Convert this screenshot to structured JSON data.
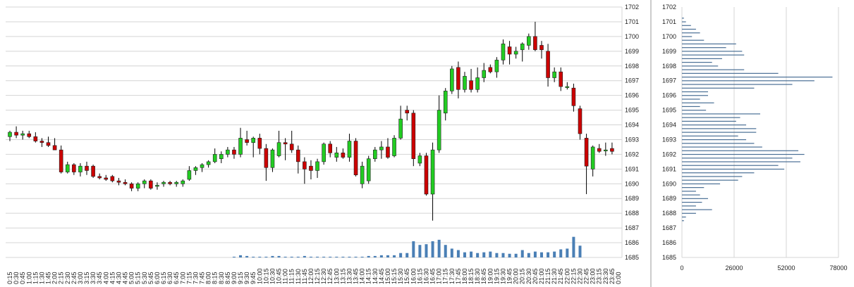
{
  "colors": {
    "background": "#ffffff",
    "grid": "#d4d4d4",
    "up": "#22cc22",
    "down": "#cc0000",
    "wick": "#000000",
    "volume": "#4a7fb5",
    "profile": "#4a6f95",
    "separator": "#999999"
  },
  "chart_data": [
    {
      "type": "candlestick",
      "grid": true,
      "ylim": [
        1685,
        1702
      ],
      "y_ticks": [
        "1702",
        "1701",
        "1700",
        "1699",
        "1698",
        "1697",
        "1696",
        "1695",
        "1694",
        "1693",
        "1692",
        "1691",
        "1690",
        "1689",
        "1688",
        "1687",
        "1686",
        "1685"
      ],
      "x_ticks": [
        "0:15",
        "0:30",
        "0:45",
        "1:00",
        "1:15",
        "1:30",
        "1:45",
        "2:00",
        "2:15",
        "2:30",
        "2:45",
        "3:00",
        "3:15",
        "3:30",
        "3:45",
        "4:00",
        "4:15",
        "4:30",
        "4:45",
        "5:00",
        "5:15",
        "5:30",
        "5:45",
        "6:00",
        "6:15",
        "6:30",
        "6:45",
        "7:00",
        "7:15",
        "7:30",
        "7:45",
        "8:00",
        "8:15",
        "8:30",
        "8:45",
        "9:00",
        "9:15",
        "9:30",
        "9:45",
        "10:00",
        "10:15",
        "10:30",
        "10:45",
        "11:00",
        "11:15",
        "11:30",
        "11:45",
        "12:00",
        "12:15",
        "12:30",
        "12:45",
        "13:00",
        "13:15",
        "13:30",
        "13:45",
        "14:00",
        "14:15",
        "14:30",
        "14:45",
        "15:00",
        "15:15",
        "15:30",
        "15:45",
        "16:00",
        "16:15",
        "16:30",
        "16:45",
        "17:00",
        "17:15",
        "17:30",
        "17:45",
        "18:00",
        "18:15",
        "18:30",
        "18:45",
        "19:00",
        "19:15",
        "19:30",
        "19:45",
        "20:00",
        "20:15",
        "20:30",
        "20:45",
        "21:00",
        "21:15",
        "21:30",
        "21:45",
        "22:00",
        "22:15",
        "22:30",
        "22:45",
        "23:00",
        "23:15",
        "23:30",
        "23:45",
        "0:00"
      ],
      "candles": [
        {
          "o": 1693.2,
          "h": 1693.6,
          "l": 1692.9,
          "c": 1693.5
        },
        {
          "o": 1693.5,
          "h": 1693.9,
          "l": 1693.1,
          "c": 1693.3
        },
        {
          "o": 1693.3,
          "h": 1693.6,
          "l": 1693.0,
          "c": 1693.4
        },
        {
          "o": 1693.4,
          "h": 1693.6,
          "l": 1693.1,
          "c": 1693.2
        },
        {
          "o": 1693.2,
          "h": 1693.5,
          "l": 1692.8,
          "c": 1692.9
        },
        {
          "o": 1692.9,
          "h": 1693.1,
          "l": 1692.5,
          "c": 1692.8
        },
        {
          "o": 1692.8,
          "h": 1693.2,
          "l": 1692.5,
          "c": 1692.6
        },
        {
          "o": 1692.6,
          "h": 1693.1,
          "l": 1692.3,
          "c": 1692.3
        },
        {
          "o": 1692.3,
          "h": 1692.6,
          "l": 1690.7,
          "c": 1690.8
        },
        {
          "o": 1690.8,
          "h": 1691.5,
          "l": 1690.7,
          "c": 1691.3
        },
        {
          "o": 1691.3,
          "h": 1691.4,
          "l": 1690.6,
          "c": 1690.8
        },
        {
          "o": 1690.8,
          "h": 1691.4,
          "l": 1690.5,
          "c": 1691.2
        },
        {
          "o": 1691.2,
          "h": 1691.5,
          "l": 1690.6,
          "c": 1690.9
        },
        {
          "o": 1691.2,
          "h": 1691.3,
          "l": 1690.4,
          "c": 1690.5
        },
        {
          "o": 1690.5,
          "h": 1690.7,
          "l": 1690.3,
          "c": 1690.4
        },
        {
          "o": 1690.4,
          "h": 1690.6,
          "l": 1690.2,
          "c": 1690.3
        },
        {
          "o": 1690.5,
          "h": 1690.6,
          "l": 1690.1,
          "c": 1690.2
        },
        {
          "o": 1690.2,
          "h": 1690.4,
          "l": 1689.9,
          "c": 1690.1
        },
        {
          "o": 1690.1,
          "h": 1690.3,
          "l": 1689.9,
          "c": 1690.0
        },
        {
          "o": 1690.0,
          "h": 1690.1,
          "l": 1689.5,
          "c": 1689.7
        },
        {
          "o": 1689.7,
          "h": 1690.1,
          "l": 1689.5,
          "c": 1690.0
        },
        {
          "o": 1690.0,
          "h": 1690.3,
          "l": 1689.7,
          "c": 1690.2
        },
        {
          "o": 1690.2,
          "h": 1690.3,
          "l": 1689.6,
          "c": 1689.7
        },
        {
          "o": 1689.9,
          "h": 1690.1,
          "l": 1689.6,
          "c": 1689.9
        },
        {
          "o": 1690.0,
          "h": 1690.2,
          "l": 1689.8,
          "c": 1690.1
        },
        {
          "o": 1690.1,
          "h": 1690.2,
          "l": 1689.9,
          "c": 1690.0
        },
        {
          "o": 1690.0,
          "h": 1690.2,
          "l": 1689.8,
          "c": 1690.1
        },
        {
          "o": 1690.0,
          "h": 1690.3,
          "l": 1689.8,
          "c": 1690.2
        },
        {
          "o": 1690.3,
          "h": 1691.2,
          "l": 1690.2,
          "c": 1690.9
        },
        {
          "o": 1690.9,
          "h": 1691.2,
          "l": 1690.6,
          "c": 1691.1
        },
        {
          "o": 1691.1,
          "h": 1691.4,
          "l": 1690.8,
          "c": 1691.3
        },
        {
          "o": 1691.3,
          "h": 1691.6,
          "l": 1691.1,
          "c": 1691.5
        },
        {
          "o": 1691.5,
          "h": 1692.4,
          "l": 1691.4,
          "c": 1692.0
        },
        {
          "o": 1691.7,
          "h": 1692.2,
          "l": 1691.4,
          "c": 1692.0
        },
        {
          "o": 1692.0,
          "h": 1692.5,
          "l": 1691.8,
          "c": 1692.3
        },
        {
          "o": 1692.3,
          "h": 1692.5,
          "l": 1691.7,
          "c": 1692.0
        },
        {
          "o": 1692.0,
          "h": 1693.8,
          "l": 1691.8,
          "c": 1693.1
        },
        {
          "o": 1693.0,
          "h": 1693.6,
          "l": 1692.6,
          "c": 1692.8
        },
        {
          "o": 1692.8,
          "h": 1693.2,
          "l": 1691.8,
          "c": 1693.1
        },
        {
          "o": 1693.1,
          "h": 1693.4,
          "l": 1692.0,
          "c": 1692.4
        },
        {
          "o": 1692.4,
          "h": 1692.7,
          "l": 1690.2,
          "c": 1691.1
        },
        {
          "o": 1691.1,
          "h": 1692.4,
          "l": 1690.8,
          "c": 1692.3
        },
        {
          "o": 1691.9,
          "h": 1693.6,
          "l": 1691.8,
          "c": 1692.8
        },
        {
          "o": 1692.8,
          "h": 1693.1,
          "l": 1691.6,
          "c": 1692.7
        },
        {
          "o": 1692.7,
          "h": 1693.6,
          "l": 1692.1,
          "c": 1692.3
        },
        {
          "o": 1692.3,
          "h": 1692.6,
          "l": 1690.7,
          "c": 1691.5
        },
        {
          "o": 1691.5,
          "h": 1691.8,
          "l": 1690.0,
          "c": 1691.0
        },
        {
          "o": 1691.2,
          "h": 1691.6,
          "l": 1690.3,
          "c": 1690.9
        },
        {
          "o": 1690.9,
          "h": 1691.7,
          "l": 1690.4,
          "c": 1691.5
        },
        {
          "o": 1691.5,
          "h": 1692.8,
          "l": 1691.3,
          "c": 1692.7
        },
        {
          "o": 1692.7,
          "h": 1692.9,
          "l": 1691.8,
          "c": 1692.1
        },
        {
          "o": 1691.8,
          "h": 1692.5,
          "l": 1691.5,
          "c": 1692.1
        },
        {
          "o": 1692.1,
          "h": 1692.4,
          "l": 1691.7,
          "c": 1691.8
        },
        {
          "o": 1691.8,
          "h": 1693.4,
          "l": 1691.5,
          "c": 1692.9
        },
        {
          "o": 1692.9,
          "h": 1693.1,
          "l": 1690.5,
          "c": 1690.6
        },
        {
          "o": 1690.0,
          "h": 1691.5,
          "l": 1689.7,
          "c": 1691.2
        },
        {
          "o": 1690.2,
          "h": 1691.9,
          "l": 1690.0,
          "c": 1691.7
        },
        {
          "o": 1691.7,
          "h": 1692.5,
          "l": 1691.5,
          "c": 1692.3
        },
        {
          "o": 1692.3,
          "h": 1692.9,
          "l": 1691.7,
          "c": 1692.5
        },
        {
          "o": 1692.5,
          "h": 1693.1,
          "l": 1691.7,
          "c": 1691.8
        },
        {
          "o": 1691.9,
          "h": 1693.3,
          "l": 1691.8,
          "c": 1693.1
        },
        {
          "o": 1693.1,
          "h": 1695.3,
          "l": 1693.0,
          "c": 1694.4
        },
        {
          "o": 1695.0,
          "h": 1695.3,
          "l": 1694.3,
          "c": 1694.8
        },
        {
          "o": 1694.8,
          "h": 1695.0,
          "l": 1691.2,
          "c": 1691.7
        },
        {
          "o": 1691.4,
          "h": 1692.1,
          "l": 1691.2,
          "c": 1691.9
        },
        {
          "o": 1691.9,
          "h": 1692.1,
          "l": 1689.2,
          "c": 1689.3
        },
        {
          "o": 1689.3,
          "h": 1692.8,
          "l": 1687.5,
          "c": 1692.3
        },
        {
          "o": 1692.3,
          "h": 1696.0,
          "l": 1692.1,
          "c": 1695.0
        },
        {
          "o": 1694.8,
          "h": 1696.5,
          "l": 1694.3,
          "c": 1696.3
        },
        {
          "o": 1696.3,
          "h": 1698.0,
          "l": 1696.1,
          "c": 1697.8
        },
        {
          "o": 1697.9,
          "h": 1698.3,
          "l": 1695.8,
          "c": 1696.4
        },
        {
          "o": 1696.4,
          "h": 1697.6,
          "l": 1696.2,
          "c": 1697.3
        },
        {
          "o": 1697.0,
          "h": 1697.8,
          "l": 1696.2,
          "c": 1696.4
        },
        {
          "o": 1696.4,
          "h": 1697.9,
          "l": 1696.2,
          "c": 1697.2
        },
        {
          "o": 1697.2,
          "h": 1698.2,
          "l": 1696.9,
          "c": 1697.7
        },
        {
          "o": 1697.9,
          "h": 1698.1,
          "l": 1697.5,
          "c": 1697.6
        },
        {
          "o": 1697.6,
          "h": 1698.6,
          "l": 1697.2,
          "c": 1698.4
        },
        {
          "o": 1698.4,
          "h": 1699.8,
          "l": 1698.1,
          "c": 1699.5
        },
        {
          "o": 1699.3,
          "h": 1699.7,
          "l": 1698.1,
          "c": 1698.8
        },
        {
          "o": 1698.8,
          "h": 1699.3,
          "l": 1698.5,
          "c": 1699.0
        },
        {
          "o": 1699.1,
          "h": 1699.6,
          "l": 1698.3,
          "c": 1699.5
        },
        {
          "o": 1699.4,
          "h": 1700.2,
          "l": 1699.1,
          "c": 1700.0
        },
        {
          "o": 1700.0,
          "h": 1701.0,
          "l": 1699.0,
          "c": 1699.1
        },
        {
          "o": 1699.4,
          "h": 1699.7,
          "l": 1698.5,
          "c": 1699.1
        },
        {
          "o": 1699.0,
          "h": 1699.5,
          "l": 1696.6,
          "c": 1697.2
        },
        {
          "o": 1697.2,
          "h": 1697.9,
          "l": 1696.9,
          "c": 1697.6
        },
        {
          "o": 1697.6,
          "h": 1697.9,
          "l": 1696.3,
          "c": 1696.6
        },
        {
          "o": 1696.6,
          "h": 1696.9,
          "l": 1696.4,
          "c": 1696.6
        },
        {
          "o": 1696.5,
          "h": 1696.8,
          "l": 1694.9,
          "c": 1695.3
        },
        {
          "o": 1695.1,
          "h": 1695.3,
          "l": 1693.0,
          "c": 1693.4
        },
        {
          "o": 1693.1,
          "h": 1693.4,
          "l": 1689.3,
          "c": 1691.2
        },
        {
          "o": 1691.0,
          "h": 1692.6,
          "l": 1690.5,
          "c": 1692.5
        },
        {
          "o": 1692.4,
          "h": 1692.7,
          "l": 1692.1,
          "c": 1692.2
        },
        {
          "o": 1692.3,
          "h": 1692.8,
          "l": 1691.9,
          "c": 1692.3
        },
        {
          "o": 1692.4,
          "h": 1692.8,
          "l": 1692.0,
          "c": 1692.2
        }
      ],
      "volume": [
        0,
        0,
        0,
        0,
        0,
        0,
        0,
        0,
        0,
        0,
        0,
        0,
        0,
        0,
        0,
        0,
        0,
        0,
        0,
        0,
        0,
        0,
        0,
        0,
        0,
        0,
        0,
        0,
        0,
        0,
        0,
        0,
        0,
        0,
        0,
        0.05,
        0.15,
        0.1,
        0.05,
        0.05,
        0.05,
        0.1,
        0.1,
        0.05,
        0.05,
        0.05,
        0.1,
        0.05,
        0.05,
        0.05,
        0.05,
        0.05,
        0.05,
        0.05,
        0.05,
        0.05,
        0.1,
        0.1,
        0.15,
        0.15,
        0.15,
        0.3,
        0.3,
        1.1,
        0.85,
        0.9,
        1.1,
        1.2,
        0.85,
        0.6,
        0.5,
        0.35,
        0.4,
        0.3,
        0.35,
        0.4,
        0.3,
        0.3,
        0.25,
        0.25,
        0.5,
        0.3,
        0.4,
        0.35,
        0.35,
        0.4,
        0.55,
        0.6,
        1.4,
        0.8,
        0,
        0,
        0,
        0,
        0,
        0
      ],
      "volume_band": [
        1685,
        1686.5
      ]
    },
    {
      "type": "bar",
      "orientation": "horizontal",
      "grid": true,
      "xlim": [
        0,
        78000
      ],
      "x_ticks": [
        "0",
        "26000",
        "52000",
        "78000"
      ],
      "ylim": [
        1685,
        1702
      ],
      "y_ticks": [
        "1702",
        "1701",
        "1700",
        "1699",
        "1698",
        "1697",
        "1696",
        "1695",
        "1694",
        "1693",
        "1692",
        "1691",
        "1690",
        "1689",
        "1688",
        "1687",
        "1686",
        "1685"
      ],
      "bins": [
        {
          "p": 1701.25,
          "v": 1000
        },
        {
          "p": 1701.0,
          "v": 2000
        },
        {
          "p": 1700.75,
          "v": 4500
        },
        {
          "p": 1700.5,
          "v": 7000
        },
        {
          "p": 1700.25,
          "v": 9000
        },
        {
          "p": 1700.0,
          "v": 5000
        },
        {
          "p": 1699.75,
          "v": 11000
        },
        {
          "p": 1699.5,
          "v": 27000
        },
        {
          "p": 1699.25,
          "v": 22000
        },
        {
          "p": 1699.0,
          "v": 30000
        },
        {
          "p": 1698.75,
          "v": 31000
        },
        {
          "p": 1698.5,
          "v": 20000
        },
        {
          "p": 1698.25,
          "v": 15000
        },
        {
          "p": 1698.0,
          "v": 18000
        },
        {
          "p": 1697.75,
          "v": 31000
        },
        {
          "p": 1697.5,
          "v": 48000
        },
        {
          "p": 1697.25,
          "v": 75000
        },
        {
          "p": 1697.0,
          "v": 66000
        },
        {
          "p": 1696.75,
          "v": 55000
        },
        {
          "p": 1696.5,
          "v": 36000
        },
        {
          "p": 1696.25,
          "v": 13000
        },
        {
          "p": 1696.0,
          "v": 13000
        },
        {
          "p": 1695.75,
          "v": 9000
        },
        {
          "p": 1695.5,
          "v": 16000
        },
        {
          "p": 1695.25,
          "v": 9000
        },
        {
          "p": 1695.0,
          "v": 12000
        },
        {
          "p": 1694.75,
          "v": 39000
        },
        {
          "p": 1694.5,
          "v": 29000
        },
        {
          "p": 1694.25,
          "v": 27000
        },
        {
          "p": 1694.0,
          "v": 32000
        },
        {
          "p": 1693.75,
          "v": 37000
        },
        {
          "p": 1693.5,
          "v": 37000
        },
        {
          "p": 1693.25,
          "v": 28000
        },
        {
          "p": 1693.0,
          "v": 32000
        },
        {
          "p": 1692.75,
          "v": 36000
        },
        {
          "p": 1692.5,
          "v": 40000
        },
        {
          "p": 1692.25,
          "v": 58000
        },
        {
          "p": 1692.0,
          "v": 61000
        },
        {
          "p": 1691.75,
          "v": 55000
        },
        {
          "p": 1691.5,
          "v": 59000
        },
        {
          "p": 1691.25,
          "v": 48000
        },
        {
          "p": 1691.0,
          "v": 51000
        },
        {
          "p": 1690.75,
          "v": 36000
        },
        {
          "p": 1690.5,
          "v": 30000
        },
        {
          "p": 1690.25,
          "v": 28000
        },
        {
          "p": 1690.0,
          "v": 19000
        },
        {
          "p": 1689.75,
          "v": 11000
        },
        {
          "p": 1689.5,
          "v": 7000
        },
        {
          "p": 1689.25,
          "v": 9000
        },
        {
          "p": 1689.0,
          "v": 13000
        },
        {
          "p": 1688.75,
          "v": 10000
        },
        {
          "p": 1688.5,
          "v": 7000
        },
        {
          "p": 1688.25,
          "v": 15000
        },
        {
          "p": 1688.0,
          "v": 7000
        },
        {
          "p": 1687.75,
          "v": 2000
        },
        {
          "p": 1687.5,
          "v": 1000
        }
      ]
    }
  ]
}
